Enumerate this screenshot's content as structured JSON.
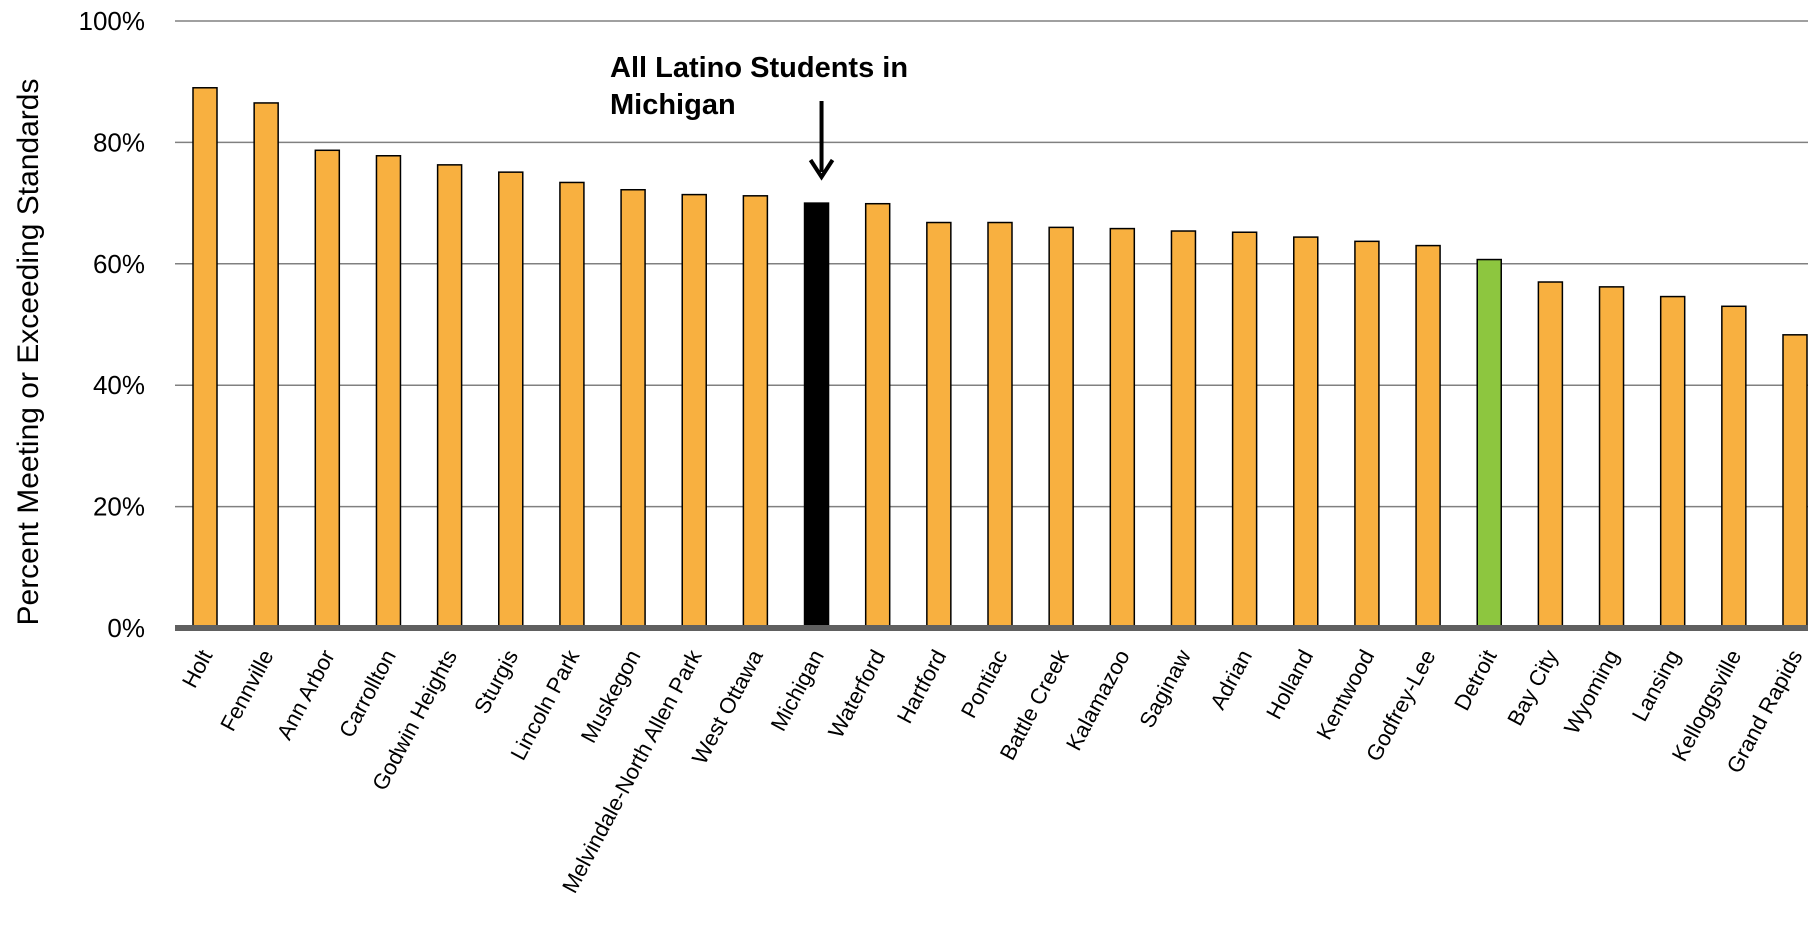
{
  "chart_data": {
    "type": "bar",
    "ylabel": "Percent Meeting or Exceeding Standards",
    "xlabel": "",
    "ylim": [
      0,
      100
    ],
    "yticks": [
      "0%",
      "20%",
      "40%",
      "60%",
      "80%",
      "100%"
    ],
    "ytick_values": [
      0,
      20,
      40,
      60,
      80,
      100
    ],
    "grid": true,
    "categories": [
      "Holt",
      "Fennville",
      "Ann Arbor",
      "Carrollton",
      "Godwin Heights",
      "Sturgis",
      "Lincoln Park",
      "Muskegon",
      "Melvindale-North Allen Park",
      "West Ottawa",
      "Michigan",
      "Waterford",
      "Hartford",
      "Pontiac",
      "Battle Creek",
      "Kalamazoo",
      "Saginaw",
      "Adrian",
      "Holland",
      "Kentwood",
      "Godfrey-Lee",
      "Detroit",
      "Bay City",
      "Wyoming",
      "Lansing",
      "Kelloggsville",
      "Grand Rapids"
    ],
    "values": [
      89,
      86.5,
      78.7,
      77.8,
      76.3,
      75.1,
      73.4,
      72.2,
      71.4,
      71.2,
      70.0,
      69.9,
      66.8,
      66.8,
      66.0,
      65.8,
      65.4,
      65.2,
      64.4,
      63.7,
      63.0,
      60.7,
      57.0,
      56.2,
      54.6,
      53.0,
      48.3
    ],
    "colors": {
      "default": "#F8B040",
      "Michigan": "#000000",
      "Detroit": "#8DC63F",
      "gridline": "#808080",
      "axis": "#606060"
    },
    "annotation": {
      "lines": [
        "All Latino Students in",
        "Michigan"
      ],
      "target": "Michigan"
    }
  }
}
